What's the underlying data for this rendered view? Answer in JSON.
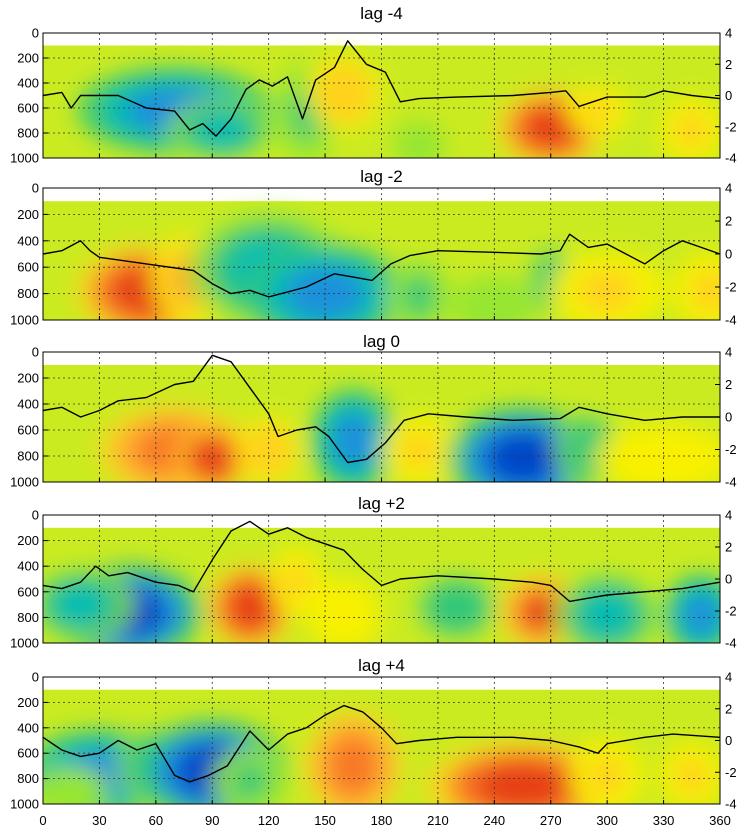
{
  "chart_data": {
    "type": "heatmap",
    "x_ticks": [
      0,
      30,
      60,
      90,
      120,
      150,
      180,
      210,
      240,
      270,
      300,
      330,
      360
    ],
    "x_range": [
      0,
      360
    ],
    "left_axis": {
      "range": [
        0,
        1000
      ],
      "ticks": [
        0,
        200,
        400,
        600,
        800,
        1000
      ],
      "inverted": true
    },
    "right_axis": {
      "range": [
        -4,
        4
      ],
      "ticks": [
        4,
        2,
        0,
        -2,
        -4
      ]
    },
    "grid": true,
    "colormap": [
      "#00008c",
      "#0046c8",
      "#1e90dc",
      "#00bcb4",
      "#32c878",
      "#96e632",
      "#d2f01e",
      "#f8f000",
      "#ffd21e",
      "#ffa532",
      "#f87828",
      "#e64114",
      "#b40000"
    ],
    "panels": [
      {
        "title": "lag -4",
        "fields": [
          {
            "x": 70,
            "y": 620,
            "w": 36,
            "h": 260,
            "v": -3.0
          },
          {
            "x": 95,
            "y": 780,
            "w": 20,
            "h": 190,
            "v": -2.0
          },
          {
            "x": 140,
            "y": 640,
            "w": 12,
            "h": 300,
            "v": -1.2
          },
          {
            "x": 160,
            "y": 480,
            "w": 14,
            "h": 230,
            "v": 1.5
          },
          {
            "x": 270,
            "y": 760,
            "w": 20,
            "h": 230,
            "v": 3.2
          },
          {
            "x": 295,
            "y": 620,
            "w": 12,
            "h": 150,
            "v": 1.2
          },
          {
            "x": 345,
            "y": 780,
            "w": 12,
            "h": 200,
            "v": 1.0
          },
          {
            "x": 200,
            "y": 900,
            "w": 10,
            "h": 150,
            "v": -1.0
          }
        ],
        "line": [
          [
            0,
            0.0
          ],
          [
            10,
            0.2
          ],
          [
            15,
            -0.8
          ],
          [
            20,
            0.0
          ],
          [
            40,
            0.0
          ],
          [
            55,
            -0.8
          ],
          [
            70,
            -1.0
          ],
          [
            78,
            -2.2
          ],
          [
            85,
            -1.8
          ],
          [
            92,
            -2.6
          ],
          [
            100,
            -1.5
          ],
          [
            108,
            0.4
          ],
          [
            115,
            1.0
          ],
          [
            122,
            0.6
          ],
          [
            130,
            1.2
          ],
          [
            138,
            -1.5
          ],
          [
            145,
            1.0
          ],
          [
            155,
            1.8
          ],
          [
            162,
            3.5
          ],
          [
            172,
            2.0
          ],
          [
            182,
            1.5
          ],
          [
            190,
            -0.4
          ],
          [
            200,
            -0.2
          ],
          [
            220,
            -0.1
          ],
          [
            250,
            0.0
          ],
          [
            270,
            0.2
          ],
          [
            278,
            0.3
          ],
          [
            285,
            -0.7
          ],
          [
            300,
            -0.1
          ],
          [
            320,
            -0.1
          ],
          [
            330,
            0.3
          ],
          [
            345,
            0.0
          ],
          [
            360,
            -0.2
          ]
        ]
      },
      {
        "title": "lag -2",
        "fields": [
          {
            "x": 55,
            "y": 780,
            "w": 26,
            "h": 260,
            "v": 3.2
          },
          {
            "x": 80,
            "y": 680,
            "w": 16,
            "h": 260,
            "v": 2.0
          },
          {
            "x": 120,
            "y": 620,
            "w": 30,
            "h": 330,
            "v": -1.8
          },
          {
            "x": 150,
            "y": 800,
            "w": 30,
            "h": 280,
            "v": -2.4
          },
          {
            "x": 200,
            "y": 820,
            "w": 12,
            "h": 220,
            "v": -1.2
          },
          {
            "x": 240,
            "y": 900,
            "w": 16,
            "h": 180,
            "v": -1.0
          },
          {
            "x": 270,
            "y": 700,
            "w": 8,
            "h": 200,
            "v": -1.5
          },
          {
            "x": 300,
            "y": 780,
            "w": 22,
            "h": 220,
            "v": 1.0
          },
          {
            "x": 355,
            "y": 780,
            "w": 14,
            "h": 220,
            "v": 1.2
          }
        ],
        "line": [
          [
            0,
            0.0
          ],
          [
            10,
            0.2
          ],
          [
            20,
            0.8
          ],
          [
            25,
            0.2
          ],
          [
            30,
            -0.2
          ],
          [
            55,
            -0.6
          ],
          [
            80,
            -1.0
          ],
          [
            90,
            -1.8
          ],
          [
            100,
            -2.4
          ],
          [
            110,
            -2.2
          ],
          [
            120,
            -2.6
          ],
          [
            140,
            -2.0
          ],
          [
            155,
            -1.2
          ],
          [
            165,
            -1.4
          ],
          [
            175,
            -1.6
          ],
          [
            185,
            -0.6
          ],
          [
            195,
            -0.1
          ],
          [
            210,
            0.2
          ],
          [
            240,
            0.1
          ],
          [
            265,
            0.0
          ],
          [
            275,
            0.2
          ],
          [
            280,
            1.2
          ],
          [
            290,
            0.4
          ],
          [
            300,
            0.6
          ],
          [
            310,
            0.0
          ],
          [
            320,
            -0.6
          ],
          [
            330,
            0.2
          ],
          [
            340,
            0.8
          ],
          [
            350,
            0.4
          ],
          [
            360,
            0.0
          ]
        ]
      },
      {
        "title": "lag 0",
        "fields": [
          {
            "x": 70,
            "y": 760,
            "w": 28,
            "h": 260,
            "v": 2.8
          },
          {
            "x": 90,
            "y": 820,
            "w": 14,
            "h": 200,
            "v": 3.2
          },
          {
            "x": 120,
            "y": 760,
            "w": 12,
            "h": 200,
            "v": 1.6
          },
          {
            "x": 165,
            "y": 680,
            "w": 16,
            "h": 300,
            "v": -2.8
          },
          {
            "x": 200,
            "y": 760,
            "w": 14,
            "h": 200,
            "v": 1.2
          },
          {
            "x": 255,
            "y": 820,
            "w": 28,
            "h": 300,
            "v": -3.4
          },
          {
            "x": 290,
            "y": 750,
            "w": 12,
            "h": 220,
            "v": -1.5
          },
          {
            "x": 330,
            "y": 820,
            "w": 26,
            "h": 200,
            "v": 0.8
          }
        ],
        "line": [
          [
            0,
            0.4
          ],
          [
            10,
            0.6
          ],
          [
            20,
            0.0
          ],
          [
            30,
            0.4
          ],
          [
            40,
            1.0
          ],
          [
            55,
            1.2
          ],
          [
            70,
            2.0
          ],
          [
            80,
            2.2
          ],
          [
            90,
            3.8
          ],
          [
            100,
            3.4
          ],
          [
            110,
            1.8
          ],
          [
            120,
            0.2
          ],
          [
            125,
            -1.2
          ],
          [
            135,
            -0.8
          ],
          [
            145,
            -0.6
          ],
          [
            152,
            -1.2
          ],
          [
            162,
            -2.8
          ],
          [
            172,
            -2.6
          ],
          [
            182,
            -1.6
          ],
          [
            192,
            -0.2
          ],
          [
            205,
            0.2
          ],
          [
            225,
            0.0
          ],
          [
            250,
            -0.2
          ],
          [
            275,
            -0.1
          ],
          [
            285,
            0.6
          ],
          [
            300,
            0.2
          ],
          [
            320,
            -0.2
          ],
          [
            340,
            0.0
          ],
          [
            360,
            0.0
          ]
        ]
      },
      {
        "title": "lag +2",
        "fields": [
          {
            "x": 45,
            "y": 760,
            "w": 28,
            "h": 280,
            "v": -3.2
          },
          {
            "x": 20,
            "y": 700,
            "w": 20,
            "h": 220,
            "v": -2.0
          },
          {
            "x": 110,
            "y": 720,
            "w": 16,
            "h": 250,
            "v": 3.2
          },
          {
            "x": 135,
            "y": 520,
            "w": 10,
            "h": 200,
            "v": 1.2
          },
          {
            "x": 160,
            "y": 780,
            "w": 14,
            "h": 220,
            "v": 0.8
          },
          {
            "x": 220,
            "y": 720,
            "w": 16,
            "h": 200,
            "v": -1.5
          },
          {
            "x": 265,
            "y": 760,
            "w": 16,
            "h": 220,
            "v": 3.0
          },
          {
            "x": 300,
            "y": 780,
            "w": 20,
            "h": 250,
            "v": -2.2
          },
          {
            "x": 350,
            "y": 780,
            "w": 14,
            "h": 240,
            "v": -2.6
          }
        ],
        "line": [
          [
            0,
            -0.4
          ],
          [
            10,
            -0.6
          ],
          [
            20,
            -0.2
          ],
          [
            28,
            0.8
          ],
          [
            35,
            0.2
          ],
          [
            45,
            0.4
          ],
          [
            60,
            -0.2
          ],
          [
            72,
            -0.4
          ],
          [
            80,
            -0.8
          ],
          [
            90,
            1.2
          ],
          [
            100,
            3.0
          ],
          [
            110,
            3.6
          ],
          [
            120,
            2.8
          ],
          [
            130,
            3.2
          ],
          [
            140,
            2.6
          ],
          [
            150,
            2.2
          ],
          [
            160,
            1.8
          ],
          [
            170,
            0.6
          ],
          [
            180,
            -0.4
          ],
          [
            190,
            0.0
          ],
          [
            210,
            0.2
          ],
          [
            240,
            0.0
          ],
          [
            260,
            -0.2
          ],
          [
            270,
            -0.4
          ],
          [
            280,
            -1.4
          ],
          [
            290,
            -1.2
          ],
          [
            300,
            -1.0
          ],
          [
            320,
            -0.8
          ],
          [
            340,
            -0.6
          ],
          [
            360,
            -0.2
          ]
        ]
      },
      {
        "title": "lag +4",
        "fields": [
          {
            "x": 30,
            "y": 760,
            "w": 28,
            "h": 260,
            "v": -2.4
          },
          {
            "x": 60,
            "y": 700,
            "w": 14,
            "h": 230,
            "v": -1.8
          },
          {
            "x": 90,
            "y": 740,
            "w": 28,
            "h": 300,
            "v": -3.2
          },
          {
            "x": 110,
            "y": 820,
            "w": 14,
            "h": 200,
            "v": -1.2
          },
          {
            "x": 165,
            "y": 700,
            "w": 18,
            "h": 320,
            "v": 2.6
          },
          {
            "x": 255,
            "y": 860,
            "w": 36,
            "h": 260,
            "v": 3.2
          },
          {
            "x": 300,
            "y": 780,
            "w": 14,
            "h": 220,
            "v": 1.0
          },
          {
            "x": 345,
            "y": 780,
            "w": 12,
            "h": 200,
            "v": 1.0
          },
          {
            "x": 15,
            "y": 900,
            "w": 14,
            "h": 150,
            "v": -1.0
          }
        ],
        "line": [
          [
            0,
            0.2
          ],
          [
            10,
            -0.6
          ],
          [
            20,
            -1.0
          ],
          [
            30,
            -0.8
          ],
          [
            40,
            0.0
          ],
          [
            50,
            -0.6
          ],
          [
            60,
            -0.2
          ],
          [
            70,
            -2.2
          ],
          [
            78,
            -2.6
          ],
          [
            88,
            -2.2
          ],
          [
            98,
            -1.6
          ],
          [
            110,
            0.6
          ],
          [
            120,
            -0.6
          ],
          [
            130,
            0.4
          ],
          [
            140,
            0.8
          ],
          [
            150,
            1.6
          ],
          [
            160,
            2.2
          ],
          [
            170,
            1.8
          ],
          [
            180,
            0.8
          ],
          [
            188,
            -0.2
          ],
          [
            200,
            0.0
          ],
          [
            220,
            0.2
          ],
          [
            250,
            0.2
          ],
          [
            270,
            0.0
          ],
          [
            285,
            -0.4
          ],
          [
            295,
            -0.8
          ],
          [
            300,
            -0.2
          ],
          [
            320,
            0.2
          ],
          [
            335,
            0.4
          ],
          [
            360,
            0.2
          ]
        ]
      }
    ]
  }
}
